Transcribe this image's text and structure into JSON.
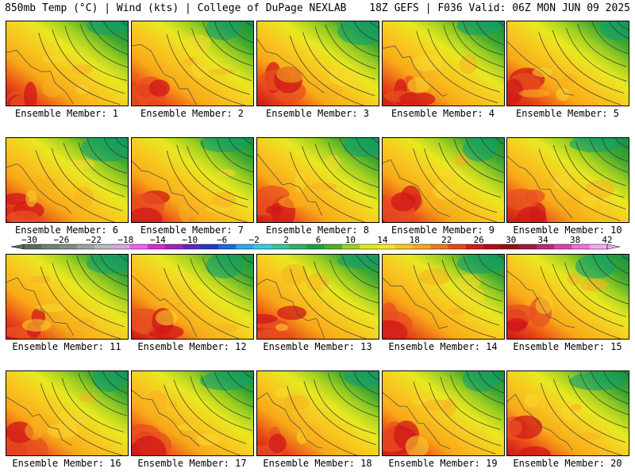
{
  "header": {
    "left": "850mb Temp (°C) | Wind (kts) | College of DuPage NEXLAB",
    "right": "18Z GEFS | F036 Valid: 06Z MON JUN 09 2025"
  },
  "members": [
    "Ensemble Member: 1",
    "Ensemble Member: 2",
    "Ensemble Member: 3",
    "Ensemble Member: 4",
    "Ensemble Member: 5",
    "Ensemble Member: 6",
    "Ensemble Member: 7",
    "Ensemble Member: 8",
    "Ensemble Member: 9",
    "Ensemble Member: 10",
    "Ensemble Member: 11",
    "Ensemble Member: 12",
    "Ensemble Member: 13",
    "Ensemble Member: 14",
    "Ensemble Member: 15",
    "Ensemble Member: 16",
    "Ensemble Member: 17",
    "Ensemble Member: 18",
    "Ensemble Member: 19",
    "Ensemble Member: 20"
  ],
  "colorbar": {
    "tick_labels": [
      "−30",
      "−26",
      "−22",
      "−18",
      "−14",
      "−10",
      "−6",
      "−2",
      "2",
      "6",
      "10",
      "14",
      "18",
      "22",
      "26",
      "30",
      "34",
      "38",
      "42"
    ],
    "colors": [
      "#5a6e5e",
      "#6e8272",
      "#7e8e86",
      "#9aa6a0",
      "#b4bcbc",
      "#d8a8e0",
      "#f060f0",
      "#d828d8",
      "#a020c8",
      "#6028c8",
      "#2038c8",
      "#2068e0",
      "#30a8f0",
      "#30d0e0",
      "#30c8a0",
      "#30b060",
      "#20a040",
      "#50b028",
      "#a0d020",
      "#e0e820",
      "#f8e820",
      "#f8c820",
      "#f8a818",
      "#f07818",
      "#e84818",
      "#d81818",
      "#b80818",
      "#901010",
      "#a01840",
      "#c02878",
      "#e040b0",
      "#f070d8",
      "#f8a8f0"
    ]
  }
}
